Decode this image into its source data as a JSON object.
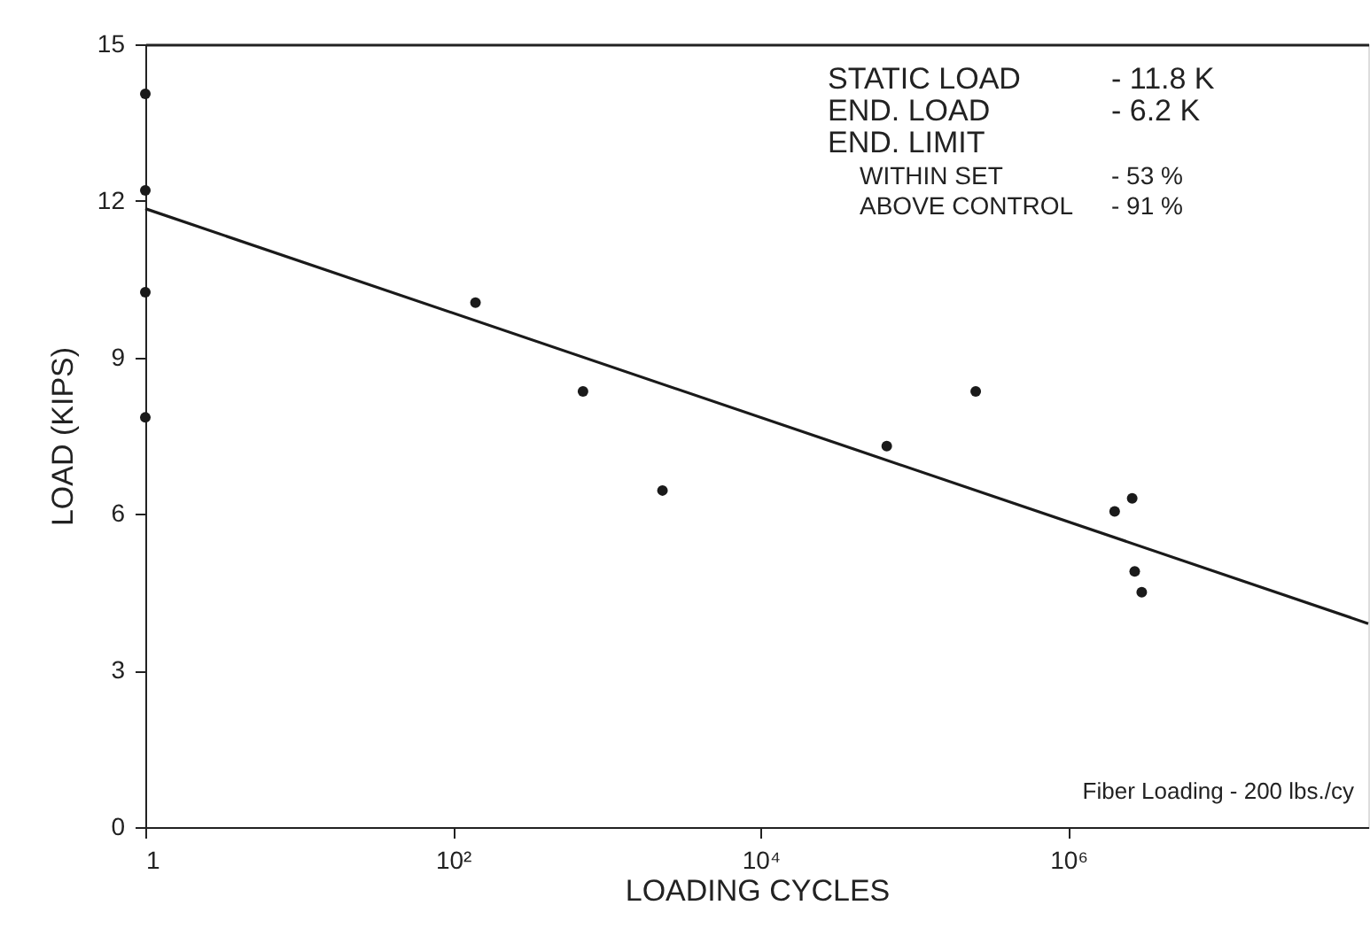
{
  "chart_data": {
    "type": "scatter",
    "xlabel": "LOADING CYCLES",
    "ylabel": "LOAD (KIPS)",
    "log": "x",
    "xlim": [
      1,
      89000000
    ],
    "ylim": [
      0,
      15
    ],
    "xticks": [
      1,
      {
        "value": 100,
        "label": "10²"
      },
      {
        "value": 10000,
        "label": "10⁴"
      },
      {
        "value": 1000000,
        "label": "10⁶"
      }
    ],
    "yticks": [
      0,
      3,
      6,
      9,
      12,
      15
    ],
    "grid": false,
    "marker": "circle",
    "series": [
      {
        "color": "#1a1a1a",
        "x": [
          1,
          1,
          1,
          1,
          140,
          700,
          2300,
          66000,
          250000,
          2000000,
          2600000,
          2700000,
          3000000
        ],
        "values": [
          14.05,
          12.2,
          10.25,
          7.85,
          10.05,
          8.35,
          6.45,
          7.3,
          8.35,
          6.05,
          6.3,
          4.9,
          4.5
        ]
      },
      {
        "type": "line",
        "color": "#1a1a1a",
        "line_style": "solid",
        "marker": "none",
        "x": [
          1,
          89000000
        ],
        "values": [
          11.85,
          3.9
        ]
      }
    ],
    "annotations": [
      "STATIC LOAD",
      "- 11.8 K",
      "END. LOAD",
      "- 6.2 K",
      "END. LIMIT",
      "WITHIN SET",
      "- 53 %",
      "ABOVE CONTROL",
      "- 91 %",
      "Fiber Loading - 200 lbs./cy"
    ]
  }
}
